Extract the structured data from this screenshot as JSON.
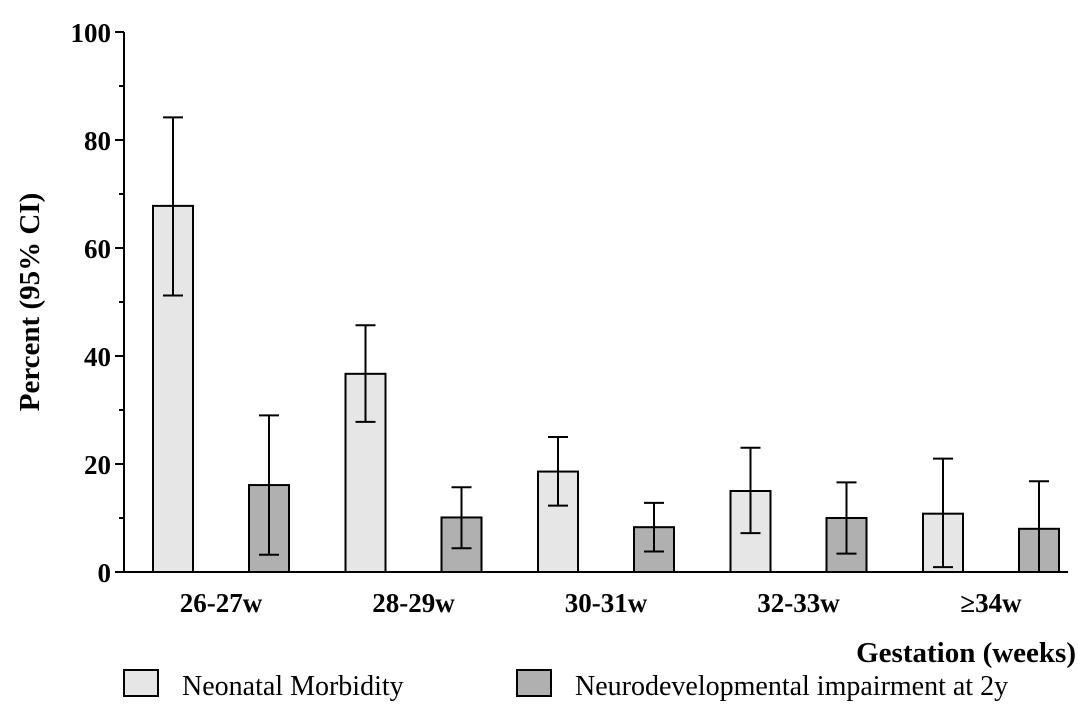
{
  "chart_data": {
    "type": "bar",
    "categories": [
      "26-27w",
      "28-29w",
      "30-31w",
      "32-33w",
      "34w"
    ],
    "category_prefix_symbol": "≥",
    "xlabel": "Gestation (weeks)",
    "ylabel": "Percent (95% CI)",
    "ylim": [
      0,
      100
    ],
    "yticks": [
      "0",
      "20",
      "40",
      "60",
      "80",
      "100"
    ],
    "grid": false,
    "legend_position": "bottom",
    "series": [
      {
        "name": "Neonatal Morbidity",
        "color": "#e6e6e6",
        "values": [
          67.8,
          36.7,
          18.6,
          15.0,
          10.8
        ],
        "ci_low": [
          51.2,
          27.8,
          12.3,
          7.2,
          0.9
        ],
        "ci_high": [
          84.2,
          45.7,
          25.0,
          23.0,
          21.0
        ]
      },
      {
        "name": "Neurodevelopmental impairment at 2y",
        "color": "#b0b0b0",
        "values": [
          16.1,
          10.1,
          8.3,
          10.0,
          8.0
        ],
        "ci_low": [
          3.2,
          4.4,
          3.8,
          3.4,
          0.0
        ],
        "ci_high": [
          29.0,
          15.7,
          12.8,
          16.6,
          16.8
        ]
      }
    ]
  }
}
